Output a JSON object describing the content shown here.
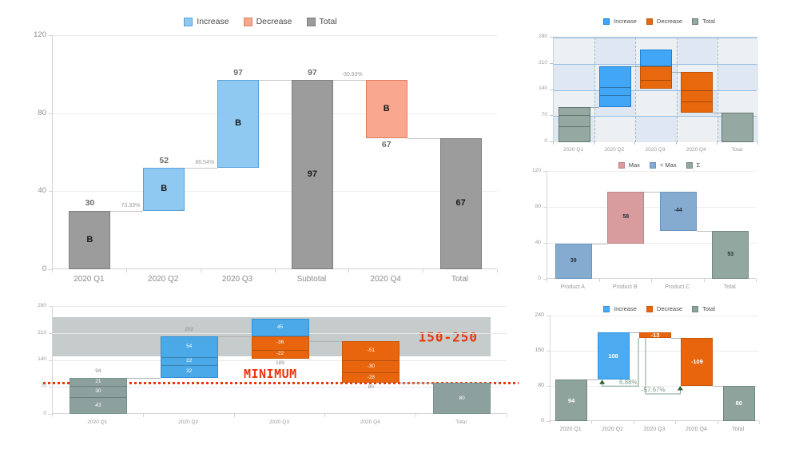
{
  "page": {
    "background": "#FFFFFF"
  },
  "chart_data": [
    {
      "id": "main",
      "type": "bar",
      "subtype": "waterfall",
      "title": "",
      "legend_position": "top-center",
      "legend": [
        {
          "key": "increase",
          "label": "Increase"
        },
        {
          "key": "decrease",
          "label": "Decrease"
        },
        {
          "key": "total",
          "label": "Total"
        }
      ],
      "ylim": [
        0,
        120
      ],
      "yticks": [
        0,
        40,
        80,
        120
      ],
      "grid": true,
      "colors": {
        "increase": "#8FC9F2",
        "increase_border": "#57A0DA",
        "decrease": "#F9A88F",
        "decrease_border": "#DE7F62",
        "total": "#9C9C9C",
        "total_border": "#7F7F7F"
      },
      "bars": [
        {
          "category": "2020 Q1",
          "boxes": [
            {
              "from": 0,
              "to": 30,
              "kind": "total",
              "inside": "B",
              "above": "30"
            }
          ]
        },
        {
          "category": "2020 Q2",
          "boxes": [
            {
              "from": 30,
              "to": 52,
              "kind": "increase",
              "inside": "B",
              "above": "52"
            }
          ]
        },
        {
          "category": "2020 Q3",
          "boxes": [
            {
              "from": 52,
              "to": 97,
              "kind": "increase",
              "inside": "B",
              "above": "97"
            }
          ]
        },
        {
          "category": "Subtotal",
          "boxes": [
            {
              "from": 0,
              "to": 97,
              "kind": "total",
              "inside": "97",
              "above": "97"
            }
          ]
        },
        {
          "category": "2020 Q4",
          "boxes": [
            {
              "from": 97,
              "to": 67,
              "kind": "decrease",
              "inside": "B",
              "below": "67"
            }
          ]
        },
        {
          "category": "Total",
          "boxes": [
            {
              "from": 0,
              "to": 67,
              "kind": "total",
              "inside": "67"
            }
          ]
        }
      ],
      "connectors": [
        {
          "from": 0,
          "to": 1,
          "at": 30,
          "label": "73.33%"
        },
        {
          "from": 1,
          "to": 2,
          "at": 52,
          "label": "86.54%"
        },
        {
          "from": 2,
          "to": 3,
          "at": 97
        },
        {
          "from": 3,
          "to": 4,
          "at": 97,
          "label": "-30.93%"
        },
        {
          "from": 4,
          "to": 5,
          "at": 67
        }
      ]
    },
    {
      "id": "band",
      "type": "bar",
      "subtype": "stacked-waterfall",
      "title": "",
      "legend": [],
      "ylim": [
        0,
        280
      ],
      "yticks": [
        0,
        70,
        140,
        210,
        280
      ],
      "band": {
        "from": 150,
        "to": 250,
        "label": "150-250",
        "color": "#C6CBCB",
        "label_color": "#E8350C"
      },
      "refline": {
        "value": 80,
        "label": "MINIMUM",
        "color": "#E8350C"
      },
      "colors": {
        "increase": "#4BA9E8",
        "increase_border": "#2F8FD6",
        "decrease": "#E8650D",
        "decrease_border": "#C9560A",
        "total": "#8CA19D",
        "total_border": "#75918B"
      },
      "bars": [
        {
          "category": "2020 Q1",
          "boxes": [
            {
              "from": 0,
              "to": 94,
              "kind": "total",
              "segments": [
                {
                  "size": 43,
                  "label": "43"
                },
                {
                  "size": 30,
                  "label": "30"
                },
                {
                  "size": 21,
                  "label": "21"
                }
              ],
              "above": "94"
            }
          ]
        },
        {
          "category": "2020 Q2",
          "boxes": [
            {
              "from": 94,
              "to": 202,
              "kind": "increase",
              "segments": [
                {
                  "size": 32,
                  "label": "32"
                },
                {
                  "size": 22,
                  "label": "22"
                },
                {
                  "size": 54,
                  "label": "54"
                }
              ],
              "above": "202"
            }
          ]
        },
        {
          "category": "2020 Q3",
          "boxes": [
            {
              "from": 202,
              "to": 247,
              "kind": "increase",
              "segments": [
                {
                  "size": 45,
                  "label": "45"
                }
              ]
            },
            {
              "from": 202,
              "to": 144,
              "kind": "decrease",
              "segments": [
                {
                  "size": -36,
                  "label": "-36"
                },
                {
                  "size": -22,
                  "label": "-22"
                }
              ],
              "below": "189"
            }
          ]
        },
        {
          "category": "2020 Q4",
          "boxes": [
            {
              "from": 189,
              "to": 80,
              "kind": "decrease",
              "segments": [
                {
                  "size": -51,
                  "label": "-51"
                },
                {
                  "size": -30,
                  "label": "-30"
                },
                {
                  "size": -28,
                  "label": "-28"
                }
              ],
              "below": "80"
            }
          ]
        },
        {
          "category": "Total",
          "boxes": [
            {
              "from": 0,
              "to": 80,
              "kind": "total",
              "inside": "80"
            }
          ]
        }
      ],
      "connectors": [
        {
          "from": 0,
          "to": 1,
          "at": 94
        },
        {
          "from": 1,
          "to": 2,
          "at": 202
        },
        {
          "from": 2,
          "to": 3,
          "at": 189
        },
        {
          "from": 3,
          "to": 4,
          "at": 80
        }
      ]
    },
    {
      "id": "mini",
      "type": "bar",
      "subtype": "stacked-waterfall",
      "title": "",
      "legend": [
        {
          "key": "increase",
          "label": "Increase"
        },
        {
          "key": "decrease",
          "label": "Decrease"
        },
        {
          "key": "total",
          "label": "Total"
        }
      ],
      "ylim": [
        0,
        280
      ],
      "yticks": [
        0,
        70,
        140,
        210,
        280
      ],
      "checker": [
        "#DFE8F2",
        "#EDF0F2"
      ],
      "colors": {
        "increase": "#41A6F5",
        "increase_border": "#1F80CE",
        "decrease": "#E8680D",
        "decrease_border": "#BC5407",
        "total": "#95A8A2",
        "total_border": "#64776F"
      },
      "bars": [
        {
          "category": "2020 Q1",
          "boxes": [
            {
              "from": 0,
              "to": 94,
              "kind": "total",
              "segments": [
                {
                  "size": 43
                },
                {
                  "size": 30
                },
                {
                  "size": 21
                }
              ]
            }
          ]
        },
        {
          "category": "2020 Q2",
          "boxes": [
            {
              "from": 94,
              "to": 202,
              "kind": "increase",
              "segments": [
                {
                  "size": 32
                },
                {
                  "size": 22
                },
                {
                  "size": 54
                }
              ]
            }
          ]
        },
        {
          "category": "2020 Q3",
          "boxes": [
            {
              "from": 202,
              "to": 247,
              "kind": "increase"
            },
            {
              "from": 202,
              "to": 144,
              "kind": "decrease",
              "segments": [
                {
                  "size": -36
                },
                {
                  "size": -22
                }
              ]
            }
          ]
        },
        {
          "category": "2020 Q4",
          "boxes": [
            {
              "from": 189,
              "to": 80,
              "kind": "decrease",
              "segments": [
                {
                  "size": -51
                },
                {
                  "size": -30
                },
                {
                  "size": -28
                }
              ]
            }
          ]
        },
        {
          "category": "Total",
          "boxes": [
            {
              "from": 0,
              "to": 80,
              "kind": "total"
            }
          ]
        }
      ],
      "connectors": [
        {
          "from": 0,
          "to": 1,
          "at": 94
        },
        {
          "from": 1,
          "to": 2,
          "at": 202
        },
        {
          "from": 2,
          "to": 3,
          "at": 189
        },
        {
          "from": 3,
          "to": 4,
          "at": 80
        }
      ]
    },
    {
      "id": "products",
      "type": "bar",
      "subtype": "waterfall",
      "title": "",
      "legend": [
        {
          "key": "max",
          "label": "Max"
        },
        {
          "key": "ltmax",
          "label": "< Max"
        },
        {
          "key": "sigma",
          "label": "Σ"
        }
      ],
      "ylim": [
        0,
        120
      ],
      "yticks": [
        0,
        40,
        80,
        120
      ],
      "colors": {
        "max": "#D89C9E",
        "max_border": "#BE8385",
        "ltmax": "#85ABD0",
        "ltmax_border": "#6B93BC",
        "sigma": "#92A79F",
        "sigma_border": "#71867E"
      },
      "bars": [
        {
          "category": "Product A",
          "boxes": [
            {
              "from": 0,
              "to": 39,
              "kind": "ltmax",
              "inside": "39"
            }
          ]
        },
        {
          "category": "Product B",
          "boxes": [
            {
              "from": 39,
              "to": 97,
              "kind": "max",
              "inside": "58"
            }
          ]
        },
        {
          "category": "Product C",
          "boxes": [
            {
              "from": 97,
              "to": 53,
              "kind": "ltmax",
              "inside": "-44"
            }
          ]
        },
        {
          "category": "Total",
          "boxes": [
            {
              "from": 0,
              "to": 53,
              "kind": "sigma",
              "inside": "53"
            }
          ]
        }
      ],
      "connectors": [
        {
          "from": 0,
          "to": 1,
          "at": 39
        },
        {
          "from": 1,
          "to": 2,
          "at": 97
        },
        {
          "from": 2,
          "to": 3,
          "at": 53
        }
      ]
    },
    {
      "id": "percent",
      "type": "bar",
      "subtype": "waterfall",
      "title": "",
      "legend": [
        {
          "key": "increase",
          "label": "Increase"
        },
        {
          "key": "decrease",
          "label": "Decrease"
        },
        {
          "key": "total",
          "label": "Total"
        }
      ],
      "ylim": [
        0,
        240
      ],
      "yticks": [
        0,
        80,
        160,
        240
      ],
      "colors": {
        "increase": "#4BAAF0",
        "increase_border": "#2E93DE",
        "decrease": "#E8650D",
        "decrease_border": "#C9560A",
        "total": "#8EA39B",
        "total_border": "#73897F"
      },
      "bars": [
        {
          "category": "2020 Q1",
          "boxes": [
            {
              "from": 0,
              "to": 94,
              "kind": "total",
              "inside": "94"
            }
          ]
        },
        {
          "category": "2020 Q2",
          "boxes": [
            {
              "from": 94,
              "to": 202,
              "kind": "increase",
              "inside": "108"
            }
          ]
        },
        {
          "category": "2020 Q3",
          "boxes": [
            {
              "from": 189,
              "to": 202,
              "kind": "decrease",
              "inside": "-13"
            }
          ]
        },
        {
          "category": "2020 Q4",
          "boxes": [
            {
              "from": 80,
              "to": 189,
              "kind": "decrease",
              "inside": "-109"
            }
          ]
        },
        {
          "category": "Total",
          "boxes": [
            {
              "from": 0,
              "to": 80,
              "kind": "total",
              "inside": "80"
            }
          ]
        }
      ],
      "connectors": [
        {
          "from": 0,
          "to": 1,
          "at": 94
        },
        {
          "from": 1,
          "to": 2,
          "at": 202
        },
        {
          "from": 2,
          "to": 3,
          "at": 189
        },
        {
          "from": 3,
          "to": 4,
          "at": 80
        }
      ],
      "annotations": [
        {
          "label": "6.88%",
          "from_slot": 2,
          "from_dx": -20,
          "from_value": 189,
          "to_slot": 1,
          "to_dx": -13,
          "to_value": 94,
          "drop": 8,
          "label_dx": 10
        },
        {
          "label": "-57.67%",
          "from_slot": 2,
          "from_dx": -11,
          "from_value": 189,
          "to_slot": 3,
          "to_dx": -20,
          "to_value": 80,
          "drop": 10,
          "label_dx": -12
        }
      ]
    }
  ]
}
